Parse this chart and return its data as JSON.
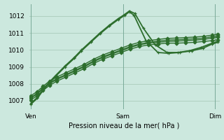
{
  "xlabel": "Pression niveau de la mer( hPa )",
  "bg_color": "#cce8de",
  "grid_color": "#aaccbb",
  "line_color": "#2d6e2d",
  "marker_color": "#2d6e2d",
  "ylim": [
    1006.5,
    1012.7
  ],
  "yticks": [
    1007,
    1008,
    1009,
    1010,
    1011,
    1012
  ],
  "xtick_labels": [
    "Ven",
    "Sam",
    "Dim"
  ],
  "xtick_positions": [
    0.0,
    1.0,
    2.0
  ],
  "xlim": [
    -0.02,
    2.05
  ],
  "series": [
    {
      "x": [
        0.0,
        0.07,
        0.13,
        0.2,
        0.28,
        0.38,
        0.48,
        0.58,
        0.68,
        0.78,
        0.88,
        0.98,
        1.08,
        1.18,
        1.28,
        1.38,
        1.48,
        1.58,
        1.68,
        1.78,
        1.88,
        1.97,
        2.03
      ],
      "y": [
        1007.05,
        1007.3,
        1007.6,
        1007.9,
        1008.15,
        1008.4,
        1008.65,
        1008.9,
        1009.2,
        1009.45,
        1009.65,
        1009.85,
        1010.05,
        1010.2,
        1010.3,
        1010.35,
        1010.4,
        1010.4,
        1010.42,
        1010.45,
        1010.5,
        1010.55,
        1010.6
      ],
      "marker": "D",
      "markersize": 2.5,
      "lw": 1.0
    },
    {
      "x": [
        0.0,
        0.07,
        0.13,
        0.2,
        0.28,
        0.38,
        0.48,
        0.58,
        0.68,
        0.78,
        0.88,
        0.98,
        1.08,
        1.18,
        1.28,
        1.38,
        1.48,
        1.58,
        1.68,
        1.78,
        1.88,
        1.97,
        2.03
      ],
      "y": [
        1007.15,
        1007.4,
        1007.7,
        1008.0,
        1008.25,
        1008.5,
        1008.75,
        1009.0,
        1009.3,
        1009.55,
        1009.75,
        1009.95,
        1010.15,
        1010.3,
        1010.4,
        1010.45,
        1010.5,
        1010.52,
        1010.55,
        1010.58,
        1010.62,
        1010.7,
        1010.75
      ],
      "marker": "D",
      "markersize": 2.5,
      "lw": 1.0
    },
    {
      "x": [
        0.0,
        0.07,
        0.13,
        0.2,
        0.28,
        0.38,
        0.48,
        0.58,
        0.68,
        0.78,
        0.88,
        0.98,
        1.08,
        1.18,
        1.28,
        1.38,
        1.48,
        1.58,
        1.68,
        1.78,
        1.88,
        1.97,
        2.03
      ],
      "y": [
        1007.2,
        1007.45,
        1007.75,
        1008.05,
        1008.3,
        1008.55,
        1008.8,
        1009.05,
        1009.35,
        1009.6,
        1009.8,
        1010.0,
        1010.2,
        1010.35,
        1010.45,
        1010.52,
        1010.58,
        1010.6,
        1010.63,
        1010.66,
        1010.7,
        1010.78,
        1010.83
      ],
      "marker": "D",
      "markersize": 2.5,
      "lw": 1.0
    },
    {
      "x": [
        0.0,
        0.07,
        0.13,
        0.2,
        0.28,
        0.38,
        0.48,
        0.58,
        0.68,
        0.78,
        0.88,
        0.98,
        1.08,
        1.18,
        1.28,
        1.38,
        1.48,
        1.58,
        1.68,
        1.78,
        1.88,
        1.97,
        2.03
      ],
      "y": [
        1007.3,
        1007.55,
        1007.85,
        1008.15,
        1008.4,
        1008.65,
        1008.9,
        1009.15,
        1009.45,
        1009.7,
        1009.9,
        1010.1,
        1010.3,
        1010.45,
        1010.55,
        1010.62,
        1010.68,
        1010.7,
        1010.73,
        1010.76,
        1010.8,
        1010.88,
        1010.93
      ],
      "marker": "D",
      "markersize": 2.5,
      "lw": 1.0
    },
    {
      "x": [
        0.0,
        0.07,
        0.13,
        0.2,
        0.27,
        0.37,
        0.47,
        0.55,
        0.65,
        0.75,
        0.85,
        0.95,
        1.02,
        1.07,
        1.13,
        1.22,
        1.35,
        1.48,
        1.6,
        1.72,
        1.85,
        1.97,
        2.03
      ],
      "y": [
        1006.85,
        1007.2,
        1007.65,
        1008.1,
        1008.5,
        1009.05,
        1009.55,
        1010.0,
        1010.5,
        1011.0,
        1011.45,
        1011.85,
        1012.1,
        1012.3,
        1012.15,
        1011.3,
        1010.3,
        1009.85,
        1009.85,
        1009.95,
        1010.15,
        1010.4,
        1010.5
      ],
      "marker": "+",
      "markersize": 3.5,
      "lw": 1.3
    },
    {
      "x": [
        0.0,
        0.07,
        0.13,
        0.2,
        0.27,
        0.37,
        0.47,
        0.55,
        0.65,
        0.75,
        0.85,
        0.95,
        1.02,
        1.07,
        1.12,
        1.25,
        1.38,
        1.5,
        1.62,
        1.75,
        1.87,
        1.97,
        2.03
      ],
      "y": [
        1006.8,
        1007.15,
        1007.6,
        1008.05,
        1008.45,
        1009.0,
        1009.5,
        1009.95,
        1010.45,
        1010.95,
        1011.4,
        1011.8,
        1012.05,
        1012.25,
        1012.05,
        1010.55,
        1009.85,
        1009.8,
        1009.85,
        1009.95,
        1010.1,
        1010.35,
        1010.45
      ],
      "marker": "+",
      "markersize": 3.5,
      "lw": 1.3
    }
  ]
}
